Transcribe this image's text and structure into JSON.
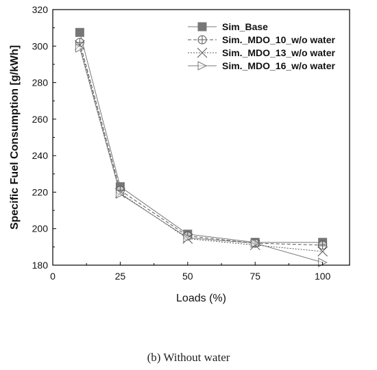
{
  "caption": "(b) Without water",
  "chart_data": {
    "type": "line",
    "xlabel": "Loads (%)",
    "ylabel": "Specific Fuel Consumption [g/kWh]",
    "xlim": [
      0,
      110
    ],
    "ylim": [
      180,
      320
    ],
    "xticks": [
      0,
      25,
      50,
      75,
      100
    ],
    "yticks": [
      180,
      200,
      220,
      240,
      260,
      280,
      300,
      320
    ],
    "legend_position": "top-right",
    "x": [
      10,
      25,
      50,
      75,
      100
    ],
    "series": [
      {
        "name": "Sim_Base",
        "values": [
          307.5,
          223,
          197,
          192.5,
          192.5
        ],
        "marker": "square",
        "dash": "solid",
        "color": "#777777"
      },
      {
        "name": "Sim._MDO_10_w/o water",
        "values": [
          302,
          221,
          196,
          192,
          191
        ],
        "marker": "circle-plus",
        "dash": "dash",
        "color": "#555555"
      },
      {
        "name": "Sim._MDO_13_w/o water",
        "values": [
          300.5,
          219.5,
          194.5,
          191,
          187.5
        ],
        "marker": "cross",
        "dash": "dot",
        "color": "#555555"
      },
      {
        "name": "Sim._MDO_16_w/o water",
        "values": [
          299,
          219,
          195,
          192,
          181.5
        ],
        "marker": "triangle-right",
        "dash": "solid",
        "color": "#777777"
      }
    ]
  }
}
